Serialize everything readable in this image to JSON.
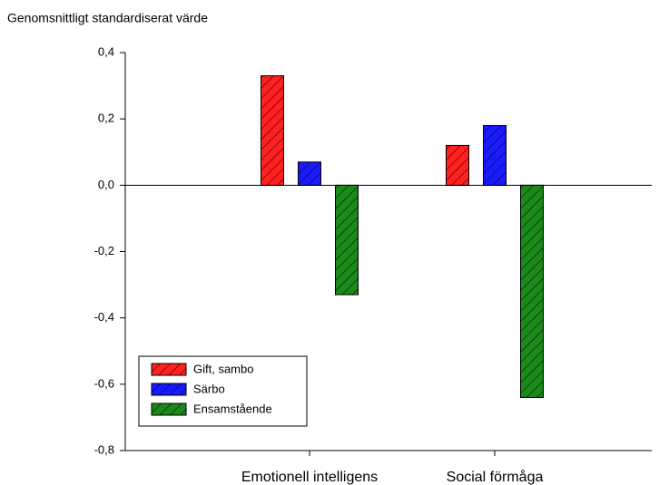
{
  "chart_data": {
    "type": "bar",
    "ylabel": "Genomsnittligt standardiserat värde",
    "categories": [
      "Emotionell intelligens",
      "Social förmåga"
    ],
    "series": [
      {
        "name": "Gift, sambo",
        "color": "#ff2020",
        "values": [
          0.33,
          0.12
        ]
      },
      {
        "name": "Särbo",
        "color": "#1a1aff",
        "values": [
          0.07,
          0.18
        ]
      },
      {
        "name": "Ensamstående",
        "color": "#1a8a1a",
        "values": [
          -0.33,
          -0.64
        ]
      }
    ],
    "ylim": [
      -0.8,
      0.4
    ],
    "yticks": [
      {
        "value": -0.8,
        "label": "-0,8"
      },
      {
        "value": -0.6,
        "label": "-0,6"
      },
      {
        "value": -0.4,
        "label": "-0,4"
      },
      {
        "value": -0.2,
        "label": "-0,2"
      },
      {
        "value": 0,
        "label": "0,0"
      },
      {
        "value": 0.2,
        "label": "0,2"
      },
      {
        "value": 0.4,
        "label": "0,4"
      }
    ],
    "hatch": true,
    "grid": false,
    "legend": "lower left"
  }
}
